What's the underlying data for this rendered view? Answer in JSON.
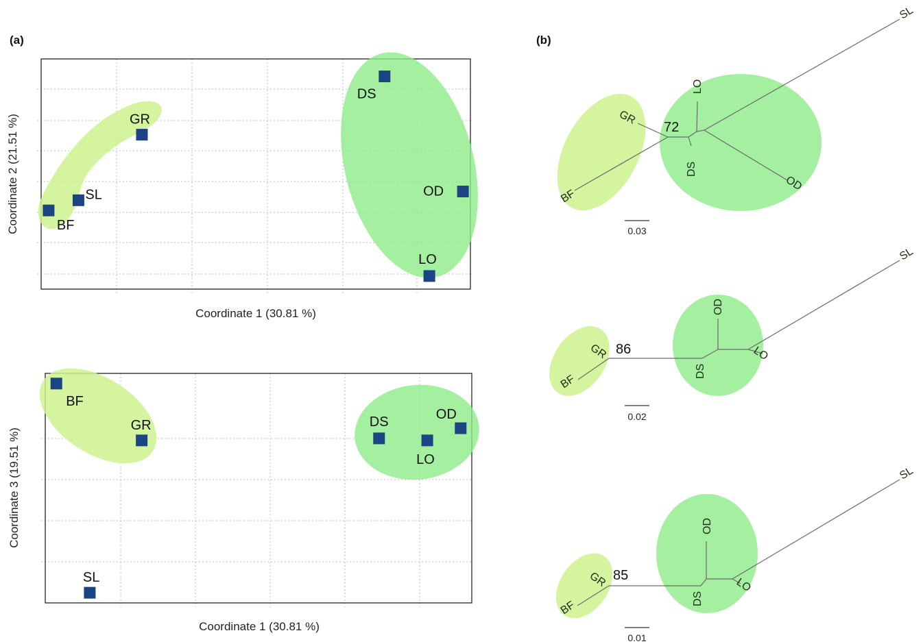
{
  "panel_labels": {
    "a": "(a)",
    "b": "(b)"
  },
  "colors": {
    "point": "#1d4482",
    "cluster_light": "#cdf28f",
    "cluster_green": "#8feb8a",
    "branch": "#6a6a6a"
  },
  "chart_data": [
    {
      "type": "scatter",
      "title": "",
      "xlabel": "Coordinate 1 (30.81 %)",
      "ylabel": "Coordinate 2 (21.51 %)",
      "grid": true,
      "points": [
        {
          "label": "BF",
          "x": 0.2,
          "y": 2.3
        },
        {
          "label": "SL",
          "x": 1.0,
          "y": 2.65
        },
        {
          "label": "GR",
          "x": 2.7,
          "y": 4.9
        },
        {
          "label": "DS",
          "x": 9.2,
          "y": 6.9
        },
        {
          "label": "OD",
          "x": 11.3,
          "y": 2.95
        },
        {
          "label": "LO",
          "x": 10.4,
          "y": 0.05
        }
      ]
    },
    {
      "type": "scatter",
      "title": "",
      "xlabel": "Coordinate 1 (30.81 %)",
      "ylabel": "Coordinate 3 (19.51 %)",
      "grid": true,
      "points": [
        {
          "label": "BF",
          "x": 0.3,
          "y": 5.4
        },
        {
          "label": "GR",
          "x": 2.6,
          "y": 4.0
        },
        {
          "label": "SL",
          "x": 1.2,
          "y": 0.25
        },
        {
          "label": "DS",
          "x": 9.0,
          "y": 4.05
        },
        {
          "label": "LO",
          "x": 10.3,
          "y": 4.0
        },
        {
          "label": "OD",
          "x": 11.2,
          "y": 4.3
        }
      ]
    },
    {
      "type": "tree",
      "tips": [
        "GR",
        "BF",
        "DS",
        "LO",
        "OD",
        "SL"
      ],
      "bootstrap": "72",
      "scale_bar": "0.03"
    },
    {
      "type": "tree",
      "tips": [
        "GR",
        "BF",
        "DS",
        "OD",
        "LO",
        "SL"
      ],
      "bootstrap": "86",
      "scale_bar": "0.02"
    },
    {
      "type": "tree",
      "tips": [
        "GR",
        "BF",
        "DS",
        "OD",
        "LO",
        "SL"
      ],
      "bootstrap": "85",
      "scale_bar": "0.01"
    }
  ]
}
